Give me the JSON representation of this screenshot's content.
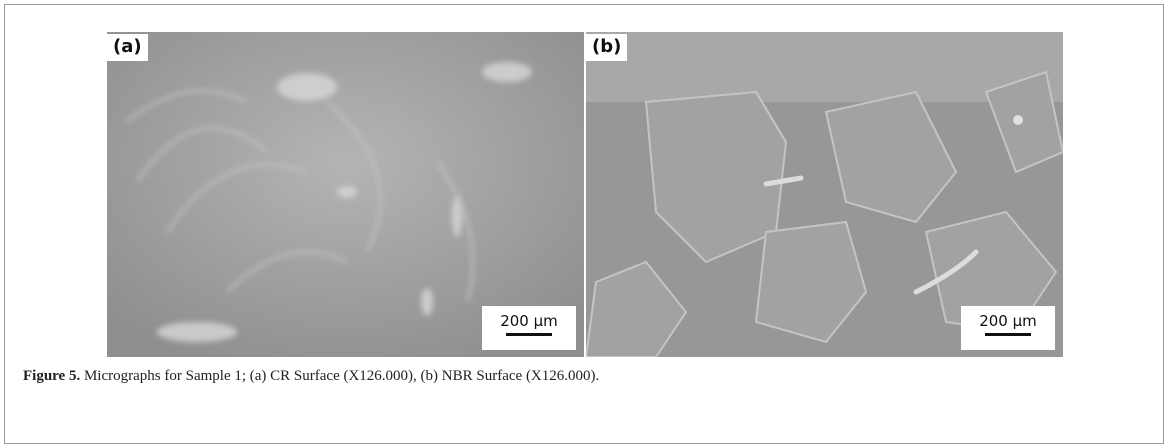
{
  "figure": {
    "panels": [
      {
        "label": "(a)",
        "scale_bar": "200 µm"
      },
      {
        "label": "(b)",
        "scale_bar": "200 µm"
      }
    ],
    "caption": {
      "label": "Figure 5.",
      "text": " Micrographs for Sample 1; (a) CR Surface (X126.000), (b) NBR Surface (X126.000)."
    }
  }
}
